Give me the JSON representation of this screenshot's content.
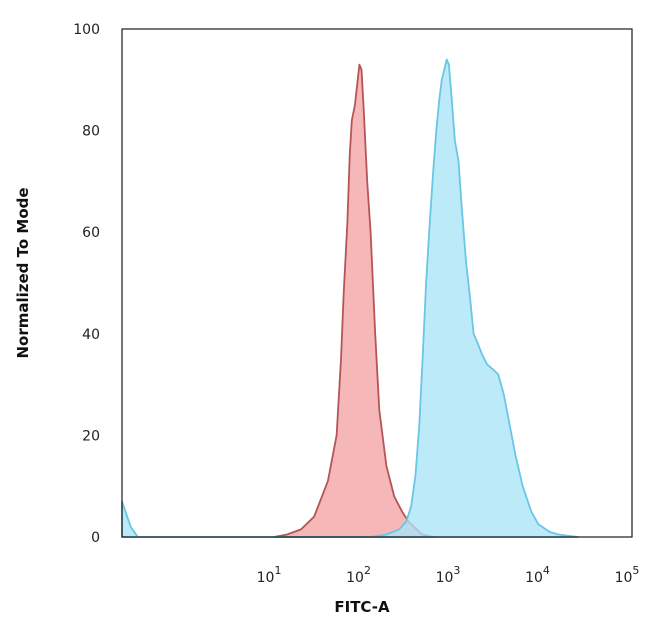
{
  "chart_data": {
    "type": "area",
    "title": "",
    "xlabel": "FITC-A",
    "ylabel": "Normalized To Mode",
    "x_scale": "log",
    "xlim": [
      0.2,
      100000
    ],
    "ylim": [
      0,
      100
    ],
    "x_ticks": [
      {
        "value": 10,
        "base": "10",
        "exp": "1"
      },
      {
        "value": 100,
        "base": "10",
        "exp": "2"
      },
      {
        "value": 1000,
        "base": "10",
        "exp": "3"
      },
      {
        "value": 10000,
        "base": "10",
        "exp": "4"
      },
      {
        "value": 100000,
        "base": "10",
        "exp": "5"
      }
    ],
    "y_ticks": [
      "0",
      "20",
      "40",
      "60",
      "80",
      "100"
    ],
    "grid": false,
    "legend": "none",
    "series": [
      {
        "fill": "#f2a3a3",
        "stroke": "#b55555",
        "points": [
          [
            10,
            0
          ],
          [
            14,
            0.5
          ],
          [
            20,
            1.5
          ],
          [
            28,
            4
          ],
          [
            40,
            11
          ],
          [
            50,
            20
          ],
          [
            56,
            35
          ],
          [
            60,
            48
          ],
          [
            66,
            62
          ],
          [
            70,
            75
          ],
          [
            74,
            82
          ],
          [
            80,
            85
          ],
          [
            86,
            90
          ],
          [
            90,
            93
          ],
          [
            95,
            92
          ],
          [
            100,
            85
          ],
          [
            110,
            70
          ],
          [
            120,
            60
          ],
          [
            135,
            40
          ],
          [
            150,
            25
          ],
          [
            180,
            14
          ],
          [
            220,
            8
          ],
          [
            270,
            5
          ],
          [
            320,
            3
          ],
          [
            450,
            0.5
          ],
          [
            600,
            0
          ]
        ]
      },
      {
        "fill": "#a9e4f7",
        "stroke": "#69c6e4",
        "points": [
          [
            0.2,
            7
          ],
          [
            0.25,
            2
          ],
          [
            0.3,
            0
          ],
          [
            3,
            0
          ],
          [
            10,
            0
          ],
          [
            120,
            0
          ],
          [
            180,
            0.5
          ],
          [
            250,
            1.5
          ],
          [
            300,
            3
          ],
          [
            340,
            6
          ],
          [
            380,
            12
          ],
          [
            420,
            22
          ],
          [
            460,
            36
          ],
          [
            500,
            50
          ],
          [
            550,
            62
          ],
          [
            600,
            72
          ],
          [
            650,
            80
          ],
          [
            700,
            86
          ],
          [
            750,
            90
          ],
          [
            800,
            92
          ],
          [
            850,
            94
          ],
          [
            900,
            93
          ],
          [
            950,
            88
          ],
          [
            1050,
            78
          ],
          [
            1150,
            74
          ],
          [
            1250,
            65
          ],
          [
            1400,
            54
          ],
          [
            1550,
            47
          ],
          [
            1700,
            40
          ],
          [
            1900,
            38
          ],
          [
            2100,
            36
          ],
          [
            2400,
            34
          ],
          [
            2800,
            33
          ],
          [
            3200,
            32
          ],
          [
            3700,
            28
          ],
          [
            4300,
            22
          ],
          [
            5000,
            16
          ],
          [
            6000,
            10
          ],
          [
            7500,
            5
          ],
          [
            9000,
            2.5
          ],
          [
            12000,
            1
          ],
          [
            15000,
            0.5
          ],
          [
            25000,
            0
          ]
        ]
      }
    ]
  }
}
